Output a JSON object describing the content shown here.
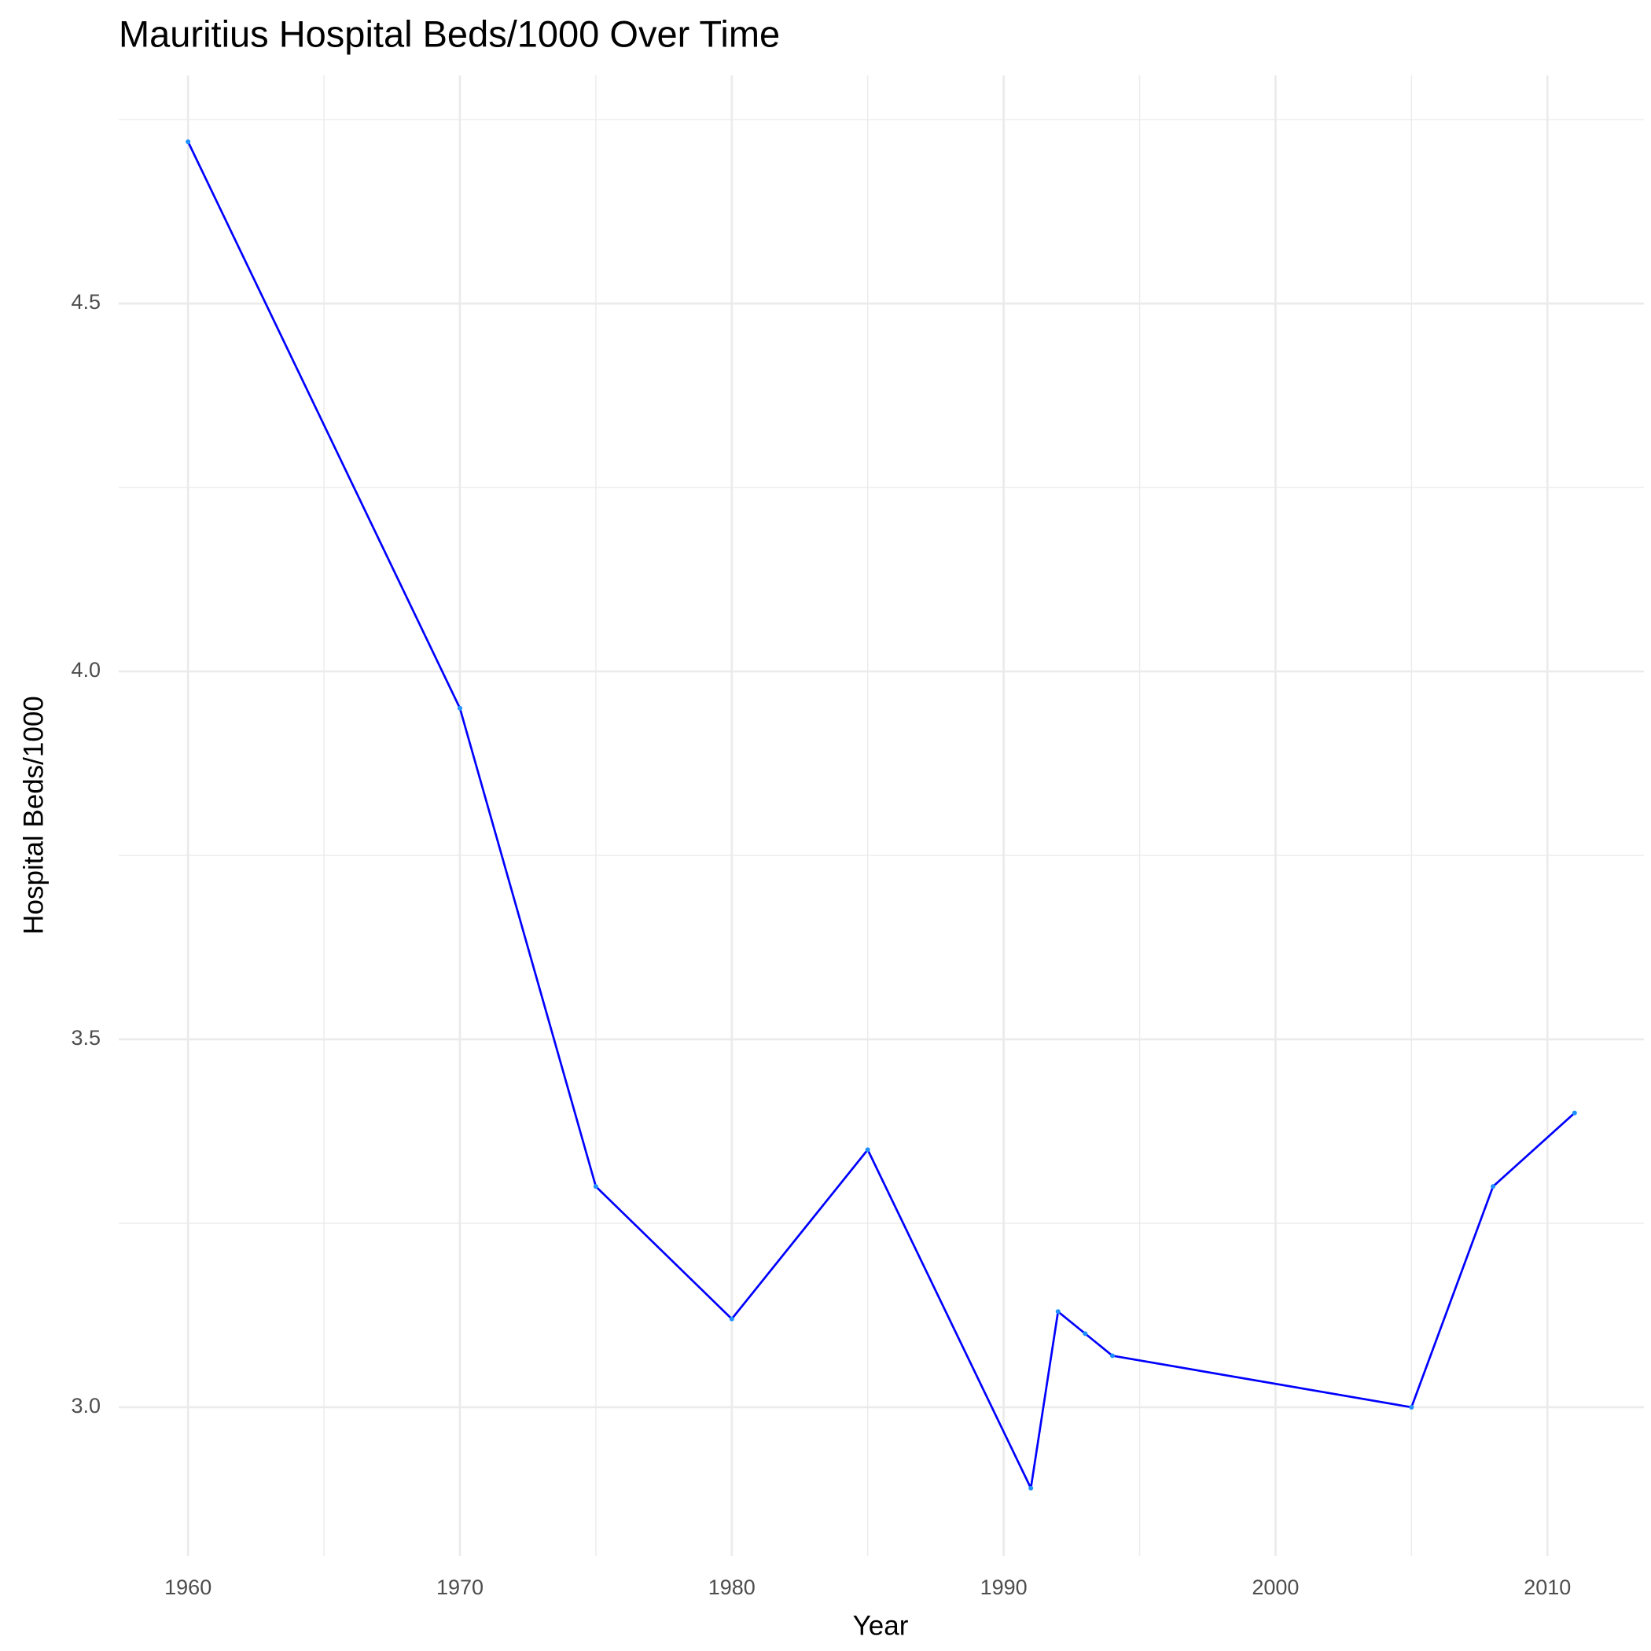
{
  "chart_data": {
    "type": "line",
    "title": "Mauritius Hospital Beds/1000 Over Time",
    "x_label": "Year",
    "y_label": "Hospital Beds/1000",
    "x": [
      1960,
      1970,
      1975,
      1980,
      1985,
      1991,
      1992,
      1993,
      1994,
      2005,
      2008,
      2011
    ],
    "series": [
      {
        "name": "Hospital Beds/1000",
        "color": "#0000ff",
        "point_color": "#1e90ff",
        "values": [
          4.72,
          3.95,
          3.3,
          3.12,
          3.35,
          2.89,
          3.13,
          3.1,
          3.07,
          3.0,
          3.3,
          3.4
        ]
      }
    ],
    "xlim": [
      1957.45,
      2013.55
    ],
    "ylim": [
      2.798,
      4.81
    ],
    "xticks": [
      1960,
      1970,
      1980,
      1990,
      2000,
      2010
    ],
    "yticks": [
      {
        "value": 3,
        "label": "3.0"
      },
      3.5,
      {
        "value": 4,
        "label": "4.0"
      },
      4.5
    ],
    "minor_xticks": [
      1965,
      1975,
      1985,
      1995,
      2005
    ],
    "minor_yticks": [
      3.25,
      3.75,
      4.25,
      4.75
    ],
    "grid": true
  }
}
